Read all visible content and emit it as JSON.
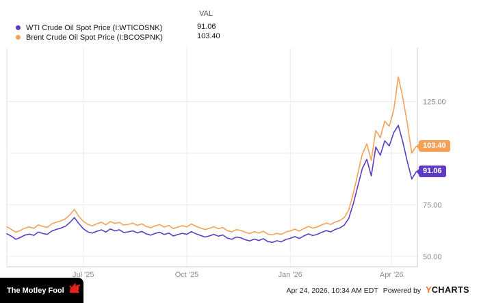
{
  "legend": {
    "val_header": "VAL",
    "items": [
      {
        "label": "WTI Crude Oil Spot Price (I:WTICOSNK)",
        "value": "91.06"
      },
      {
        "label": "Brent Crude Oil Spot Price (I:BCOSPNK)",
        "value": "103.40"
      }
    ]
  },
  "footer": {
    "left_logo": "The Motley Fool",
    "timestamp": "Apr 24, 2026, 10:34 AM EDT",
    "powered_by": "Powered by",
    "brand_y": "Y",
    "brand_rest": "CHARTS"
  },
  "chart_data": {
    "type": "line",
    "title": "",
    "xlabel": "",
    "ylabel": "",
    "x_unit": "days since Apr 24 2025",
    "xlim": [
      0,
      365
    ],
    "ylim": [
      45,
      151
    ],
    "grid": true,
    "legend_position": "top-left",
    "x_ticks": [
      {
        "pos": 68,
        "label": "Jul '25"
      },
      {
        "pos": 160,
        "label": "Oct '25"
      },
      {
        "pos": 252,
        "label": "Jan '26"
      },
      {
        "pos": 342,
        "label": "Apr '26"
      }
    ],
    "y_ticks": [
      {
        "value": 50,
        "label": "50.00"
      },
      {
        "value": 75,
        "label": "75.00"
      },
      {
        "value": 100,
        "label": ""
      },
      {
        "value": 125,
        "label": "125.00"
      }
    ],
    "x": [
      0,
      4,
      8,
      12,
      16,
      20,
      24,
      28,
      32,
      36,
      40,
      44,
      48,
      52,
      56,
      60,
      64,
      68,
      72,
      76,
      80,
      84,
      88,
      92,
      96,
      100,
      104,
      108,
      112,
      116,
      120,
      124,
      128,
      132,
      136,
      140,
      144,
      148,
      152,
      156,
      160,
      164,
      168,
      172,
      176,
      180,
      184,
      188,
      192,
      196,
      200,
      204,
      208,
      212,
      216,
      220,
      224,
      228,
      232,
      236,
      240,
      244,
      248,
      252,
      256,
      260,
      264,
      268,
      272,
      276,
      280,
      284,
      288,
      292,
      296,
      300,
      304,
      308,
      312,
      316,
      320,
      324,
      328,
      332,
      336,
      340,
      344,
      348,
      352,
      356,
      360,
      364
    ],
    "series": [
      {
        "name": "WTI Crude Oil Spot Price (I:WTICOSNK)",
        "color": "#5e3bc2",
        "last_label": "91.06",
        "values": [
          61.0,
          59.8,
          58.3,
          59.2,
          60.3,
          60.8,
          60.2,
          61.8,
          61.1,
          60.7,
          62.3,
          63.1,
          63.7,
          64.6,
          66.4,
          68.8,
          65.9,
          63.4,
          61.9,
          61.3,
          62.2,
          62.9,
          61.8,
          63.3,
          62.4,
          62.9,
          61.6,
          61.9,
          62.4,
          61.4,
          62.1,
          60.9,
          60.3,
          61.2,
          61.7,
          60.6,
          61.3,
          59.9,
          60.6,
          61.2,
          60.7,
          62.0,
          61.0,
          60.2,
          59.4,
          59.9,
          60.7,
          59.8,
          60.4,
          58.9,
          58.3,
          59.4,
          59.0,
          58.1,
          57.5,
          58.4,
          57.7,
          58.6,
          57.2,
          56.8,
          57.6,
          57.1,
          58.2,
          58.8,
          59.6,
          58.7,
          59.9,
          60.9,
          60.1,
          60.7,
          61.7,
          62.5,
          61.9,
          63.1,
          63.8,
          65.2,
          68.5,
          75.5,
          84.0,
          92.5,
          97.0,
          89.0,
          103.0,
          99.0,
          106.0,
          103.5,
          110.0,
          113.5,
          105.5,
          96.0,
          87.5,
          91.06
        ]
      },
      {
        "name": "Brent Crude Oil Spot Price (I:BCOSPNK)",
        "color": "#f5a057",
        "last_label": "103.40",
        "values": [
          64.4,
          63.1,
          61.7,
          62.6,
          63.7,
          64.3,
          63.6,
          65.3,
          64.5,
          64.1,
          65.8,
          66.6,
          67.2,
          68.2,
          70.1,
          72.7,
          69.4,
          67.0,
          65.5,
          64.8,
          65.8,
          66.6,
          65.3,
          66.9,
          66.0,
          66.5,
          65.2,
          65.5,
          66.1,
          65.0,
          65.8,
          64.5,
          63.9,
          64.8,
          65.4,
          64.2,
          65.0,
          63.5,
          64.2,
          64.9,
          64.3,
          65.7,
          64.6,
          63.8,
          63.0,
          63.6,
          64.4,
          63.4,
          64.0,
          62.5,
          61.9,
          63.0,
          62.6,
          61.7,
          61.1,
          62.0,
          61.3,
          62.2,
          60.8,
          60.4,
          61.2,
          60.7,
          61.8,
          62.4,
          63.2,
          62.3,
          63.5,
          64.5,
          63.7,
          64.3,
          65.3,
          66.1,
          65.5,
          66.7,
          67.4,
          68.9,
          72.5,
          80.5,
          90.0,
          99.5,
          104.5,
          96.5,
          111.0,
          107.5,
          115.5,
          113.0,
          121.0,
          137.0,
          127.0,
          114.5,
          100.0,
          103.4
        ]
      }
    ]
  }
}
